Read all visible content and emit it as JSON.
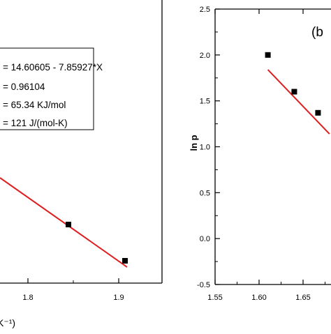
{
  "chart_data": [
    {
      "type": "scatter",
      "title": "",
      "xlabel_visible_fragment": "K⁻¹)",
      "ylabel": "",
      "xlim": [
        1.7,
        1.95
      ],
      "ylim": [
        -0.6,
        3.0
      ],
      "x_ticks": [
        "1.8",
        "1.9"
      ],
      "points": [
        {
          "x": 1.825,
          "y": 0.28
        },
        {
          "x": 1.912,
          "y": -0.24
        }
      ],
      "fit_line": {
        "slope": -7.85927,
        "intercept": 14.60605,
        "x_range": [
          1.7,
          1.93
        ]
      },
      "fit_stats": [
        "= 14.60605 - 7.85927*X",
        "= 0.96104",
        "= 65.34 KJ/mol",
        "= 121 J/(mol-K)"
      ],
      "marker_color": "#000000",
      "line_color": "#dd1f1f"
    },
    {
      "type": "scatter",
      "title": "",
      "panel_label": "(b",
      "xlabel": "",
      "ylabel": "ln p",
      "xlim": [
        1.55,
        1.7
      ],
      "ylim": [
        -0.5,
        2.5
      ],
      "x_ticks": [
        "1.55",
        "1.60",
        "1.65"
      ],
      "y_ticks": [
        "-0.5",
        "0.0",
        "0.5",
        "1.0",
        "1.5",
        "2.0",
        "2.5"
      ],
      "points": [
        {
          "x": 1.61,
          "y": 2.0
        },
        {
          "x": 1.64,
          "y": 1.6
        },
        {
          "x": 1.667,
          "y": 1.37
        }
      ],
      "fit_line": {
        "x_range": [
          1.61,
          1.68
        ],
        "y_range": [
          1.84,
          1.14
        ]
      },
      "marker_color": "#000000",
      "line_color": "#dd1f1f"
    }
  ]
}
